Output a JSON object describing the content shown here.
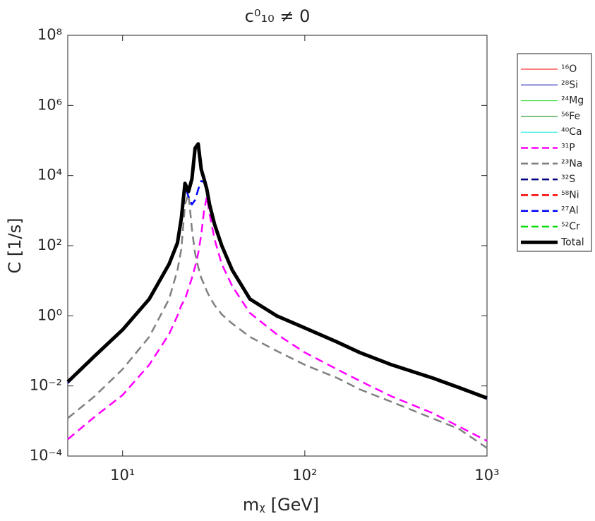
{
  "chart_data": {
    "type": "line",
    "title": "c⁰₁₀ ≠ 0",
    "xlabel": "mᵪ [GeV]",
    "ylabel": "C [1/s]",
    "xscale": "log",
    "yscale": "log",
    "xlim": [
      5,
      1000
    ],
    "ylim": [
      0.0001,
      100000000
    ],
    "xticks": [
      {
        "value": 10,
        "label": "10¹"
      },
      {
        "value": 100,
        "label": "10²"
      },
      {
        "value": 1000,
        "label": "10³"
      }
    ],
    "yticks": [
      {
        "value": 0.0001,
        "label": "10⁻⁴"
      },
      {
        "value": 0.01,
        "label": "10⁻²"
      },
      {
        "value": 1,
        "label": "10⁰"
      },
      {
        "value": 100,
        "label": "10²"
      },
      {
        "value": 10000,
        "label": "10⁴"
      },
      {
        "value": 1000000,
        "label": "10⁶"
      },
      {
        "value": 100000000,
        "label": "10⁸"
      }
    ],
    "legend": "outside-right",
    "x": [
      5,
      7,
      10,
      14,
      18,
      20,
      21,
      22,
      23,
      24,
      25,
      26,
      27,
      28,
      29,
      30,
      32,
      35,
      40,
      50,
      70,
      100,
      150,
      200,
      300,
      500,
      700,
      1000
    ],
    "series": [
      {
        "name": "¹⁶O",
        "color": "#ff0000",
        "style": "solid",
        "width": 1,
        "values": [
          null,
          null,
          null,
          null,
          null,
          null,
          null,
          null,
          null,
          null,
          null,
          null,
          null,
          null,
          null,
          null,
          null,
          null,
          null,
          null,
          null,
          null,
          null,
          null,
          null,
          null,
          null,
          null
        ]
      },
      {
        "name": "²⁸Si",
        "color": "#0000aa",
        "style": "solid",
        "width": 1,
        "values": [
          null,
          null,
          null,
          null,
          null,
          null,
          null,
          null,
          null,
          null,
          null,
          null,
          null,
          null,
          null,
          null,
          null,
          null,
          null,
          null,
          null,
          null,
          null,
          null,
          null,
          null,
          null,
          null
        ]
      },
      {
        "name": "²⁴Mg",
        "color": "#33dd33",
        "style": "solid",
        "width": 1,
        "values": [
          null,
          null,
          null,
          null,
          null,
          null,
          null,
          null,
          null,
          null,
          null,
          null,
          null,
          null,
          null,
          null,
          null,
          null,
          null,
          null,
          null,
          null,
          null,
          null,
          null,
          null,
          null,
          null
        ]
      },
      {
        "name": "⁵⁶Fe",
        "color": "#008000",
        "style": "solid",
        "width": 1,
        "values": [
          null,
          null,
          null,
          null,
          null,
          null,
          null,
          null,
          null,
          null,
          null,
          null,
          null,
          null,
          null,
          null,
          null,
          null,
          null,
          null,
          null,
          null,
          null,
          null,
          null,
          null,
          null,
          null
        ]
      },
      {
        "name": "⁴⁰Ca",
        "color": "#00e5e5",
        "style": "solid",
        "width": 1,
        "values": [
          null,
          null,
          null,
          null,
          null,
          null,
          null,
          null,
          null,
          null,
          null,
          null,
          null,
          null,
          null,
          null,
          null,
          null,
          null,
          null,
          null,
          null,
          null,
          null,
          null,
          null,
          null,
          null
        ]
      },
      {
        "name": "³¹P",
        "color": "#ff00ff",
        "style": "dashed",
        "width": 2.5,
        "values": [
          0.0003,
          0.0013,
          0.0055,
          0.04,
          0.3,
          1,
          2,
          3,
          6,
          12,
          25,
          60,
          200,
          1000,
          2500,
          800,
          150,
          30,
          7,
          1.2,
          0.3,
          0.09,
          0.03,
          0.014,
          0.005,
          0.0017,
          0.0007,
          0.00027
        ]
      },
      {
        "name": "²³Na",
        "color": "#808080",
        "style": "dashed",
        "width": 2.5,
        "values": [
          0.0012,
          0.005,
          0.03,
          0.25,
          3,
          20,
          80,
          1500,
          3000,
          300,
          60,
          25,
          12,
          8,
          5,
          3.5,
          2,
          1.1,
          0.6,
          0.25,
          0.1,
          0.04,
          0.017,
          0.008,
          0.0035,
          0.0012,
          0.0006,
          0.00017
        ]
      },
      {
        "name": "³²S",
        "color": "#000080",
        "style": "dashed",
        "width": 2.5,
        "values": [
          null,
          null,
          null,
          null,
          null,
          null,
          null,
          null,
          null,
          null,
          null,
          null,
          null,
          null,
          null,
          null,
          null,
          null,
          null,
          null,
          null,
          null,
          null,
          null,
          null,
          null,
          null,
          null
        ]
      },
      {
        "name": "⁵⁸Ni",
        "color": "#ff0000",
        "style": "dashed",
        "width": 2.5,
        "values": [
          null,
          null,
          null,
          null,
          null,
          null,
          null,
          null,
          null,
          null,
          null,
          null,
          null,
          null,
          null,
          null,
          null,
          null,
          null,
          null,
          null,
          null,
          null,
          null,
          null,
          null,
          null,
          null
        ]
      },
      {
        "name": "²⁷Al",
        "color": "#0000ff",
        "style": "dashed",
        "width": 2.5,
        "values": [
          0.012,
          0.065,
          0.38,
          2.8,
          28,
          110,
          500,
          5000,
          2500,
          1500,
          2000,
          4000,
          7000,
          6500,
          3500,
          1400,
          380,
          95,
          19,
          2.9,
          0.95,
          0.43,
          0.17,
          0.085,
          0.038,
          0.016,
          0.0085,
          0.0043
        ]
      },
      {
        "name": "⁵²Cr",
        "color": "#00dd00",
        "style": "dashed",
        "width": 2.5,
        "values": [
          null,
          null,
          null,
          null,
          null,
          null,
          null,
          null,
          null,
          null,
          null,
          null,
          null,
          null,
          null,
          null,
          null,
          null,
          null,
          null,
          null,
          null,
          null,
          null,
          null,
          null,
          null,
          null
        ]
      },
      {
        "name": "Total",
        "color": "#000000",
        "style": "solid",
        "width": 5,
        "values": [
          0.013,
          0.07,
          0.4,
          3,
          30,
          120,
          600,
          6000,
          3500,
          8000,
          60000,
          80000,
          15000,
          8000,
          4000,
          1500,
          400,
          100,
          20,
          3,
          1,
          0.45,
          0.18,
          0.09,
          0.04,
          0.017,
          0.009,
          0.0045
        ]
      }
    ]
  }
}
